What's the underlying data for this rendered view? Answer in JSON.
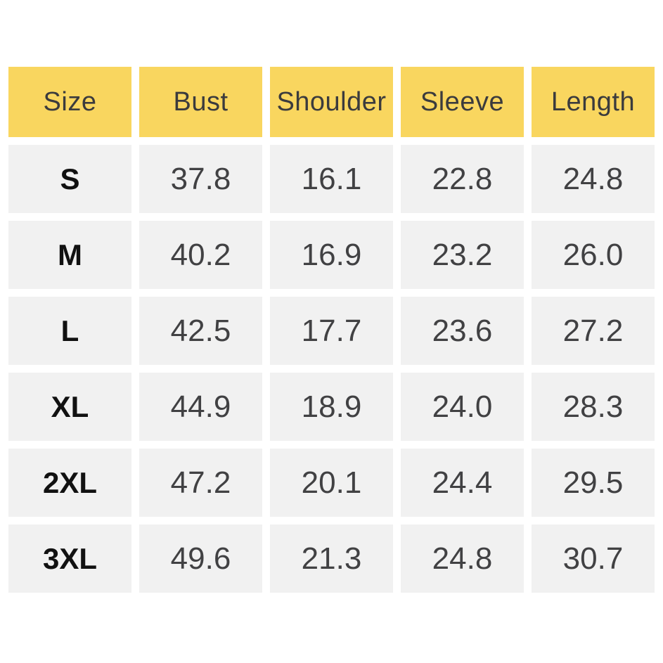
{
  "chart_data": {
    "type": "table",
    "columns": [
      "Size",
      "Bust",
      "Shoulder",
      "Sleeve",
      "Length"
    ],
    "rows": [
      {
        "size": "S",
        "values": [
          "37.8",
          "16.1",
          "22.8",
          "24.8"
        ]
      },
      {
        "size": "M",
        "values": [
          "40.2",
          "16.9",
          "23.2",
          "26.0"
        ]
      },
      {
        "size": "L",
        "values": [
          "42.5",
          "17.7",
          "23.6",
          "27.2"
        ]
      },
      {
        "size": "XL",
        "values": [
          "44.9",
          "18.9",
          "24.0",
          "28.3"
        ]
      },
      {
        "size": "2XL",
        "values": [
          "47.2",
          "20.1",
          "24.4",
          "29.5"
        ]
      },
      {
        "size": "3XL",
        "values": [
          "49.6",
          "21.3",
          "24.8",
          "30.7"
        ]
      }
    ]
  },
  "colors": {
    "header_background": "#F9D65F",
    "row_background": "#F1F1F1",
    "header_text": "#3B3B3D",
    "value_text": "#414143",
    "size_text": "#111111",
    "page_background": "#FFFFFF"
  }
}
